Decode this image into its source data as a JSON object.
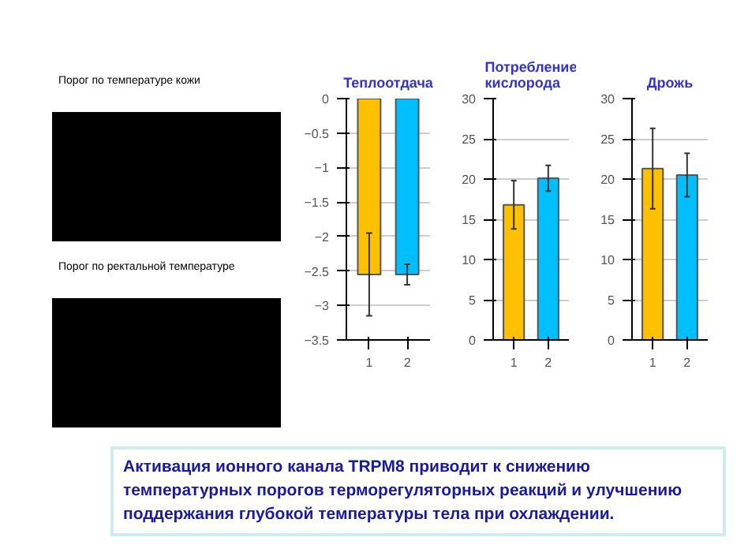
{
  "chart_data": [
    {
      "type": "bar",
      "title": "Теплоотдача",
      "categories": [
        "1",
        "2"
      ],
      "values": [
        -2.55,
        -2.55
      ],
      "colors": [
        "#ffc000",
        "#00bfff"
      ],
      "errors": [
        0.6,
        0.15
      ],
      "ylim": [
        -3.5,
        0
      ],
      "yticks": [
        -3.5,
        -3,
        -2.5,
        -2,
        -1.5,
        -1,
        -0.5,
        0
      ],
      "grid": "y"
    },
    {
      "type": "bar",
      "title": "Потребление кислорода",
      "categories": [
        "1",
        "2"
      ],
      "values": [
        16.8,
        20.1
      ],
      "colors": [
        "#ffc000",
        "#00bfff"
      ],
      "errors": [
        3,
        1.6
      ],
      "ylim": [
        0,
        30
      ],
      "yticks": [
        0,
        5,
        10,
        15,
        20,
        25,
        30
      ],
      "grid": "y"
    },
    {
      "type": "bar",
      "title": "Дрожь",
      "categories": [
        "1",
        "2"
      ],
      "values": [
        21.3,
        20.5
      ],
      "colors": [
        "#ffc000",
        "#00bfff"
      ],
      "errors": [
        5,
        2.7
      ],
      "ylim": [
        0,
        30
      ],
      "yticks": [
        0,
        5,
        10,
        15,
        20,
        25,
        30
      ],
      "grid": "y"
    },
    {
      "type": "other",
      "annotations": [
        "Порог по температуре кожи",
        "Порог по ректальной температуре",
        "Активация ионного канала TRPM8 приводит к снижению температурных порогов терморегуляторных реакций и улучшению поддержания глубокой температуры тела при охлаждении."
      ]
    }
  ]
}
